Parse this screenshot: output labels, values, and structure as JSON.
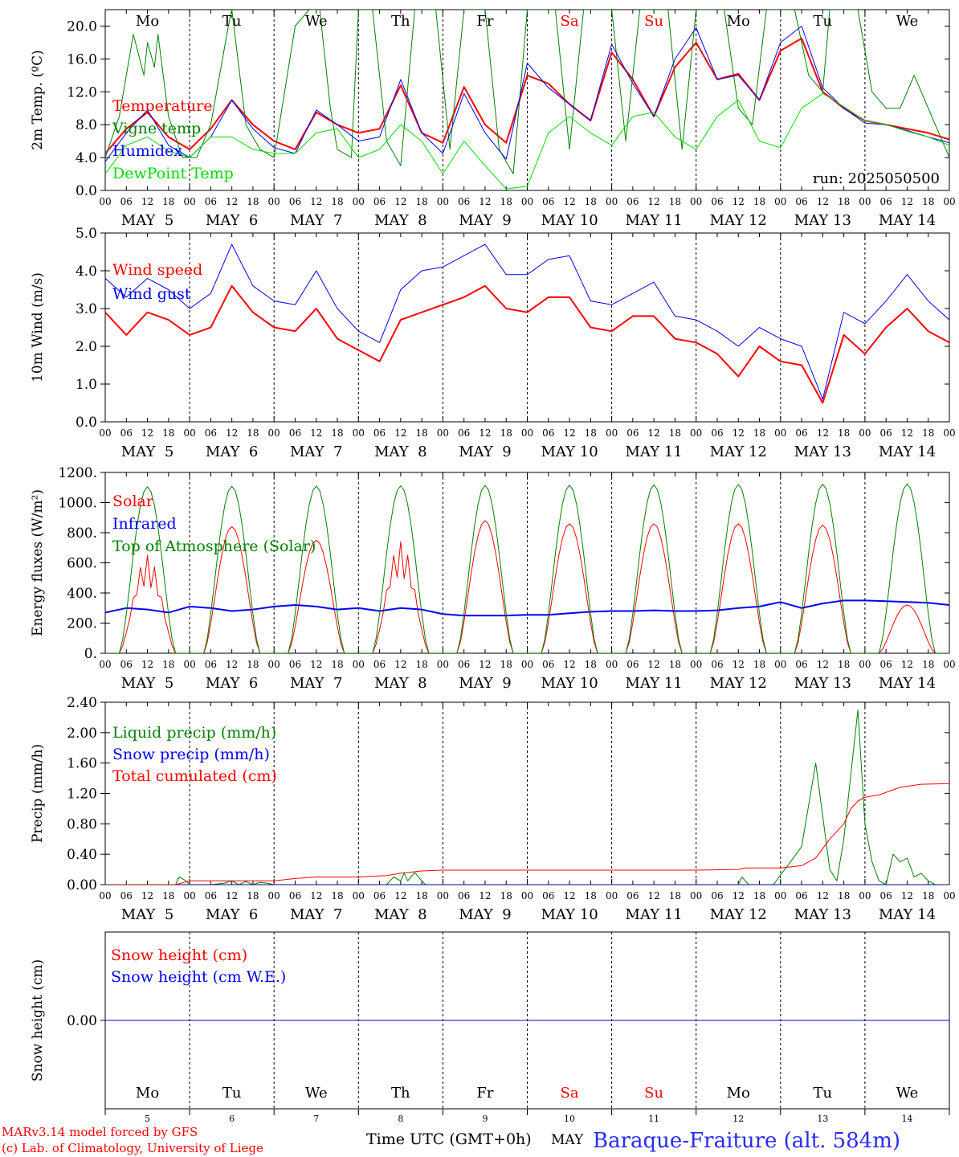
{
  "run_label": "run: 2025050500",
  "footer": {
    "model": "MARv3.14 model forced by GFS",
    "lab": "(c) Lab. of Climatology, University of Liege",
    "time_axis": "Time UTC (GMT+0h)",
    "month": "MAY",
    "station": "Baraque-Fraiture (alt. 584m)"
  },
  "days": [
    "Mo",
    "Tu",
    "We",
    "Th",
    "Fr",
    "Sa",
    "Su",
    "Mo",
    "Tu",
    "We"
  ],
  "weekend_days": [
    5,
    6
  ],
  "day_colors": {
    "weekday": "#000000",
    "weekend": "#ff0000"
  },
  "date_labels": [
    "MAY  5",
    "MAY  6",
    "MAY  7",
    "MAY  8",
    "MAY  9",
    "MAY 10",
    "MAY 11",
    "MAY 12",
    "MAY 13",
    "MAY 14"
  ],
  "day_numbers": [
    "5",
    "6",
    "7",
    "8",
    "9",
    "10",
    "11",
    "12",
    "13",
    "14"
  ],
  "hour_ticks": [
    "00",
    "06",
    "12",
    "18"
  ],
  "chart_data": [
    {
      "id": "temp",
      "type": "line",
      "ylabel": "2m Temp. (ºC)",
      "ylim": [
        0,
        22
      ],
      "ytick_values": [
        0,
        4,
        8,
        12,
        16,
        20
      ],
      "ytick_labels": [
        "0.0",
        "4.0",
        "8.0",
        "12.0",
        "16.0",
        "20.0"
      ],
      "legend_placement": "top-left",
      "x_unit": "hours since MAY 5 00 UTC",
      "series": [
        {
          "name": "Temperature",
          "color": "#ff0000",
          "width": 2,
          "x": [
            0,
            6,
            12,
            18,
            24,
            30,
            36,
            42,
            48,
            54,
            60,
            66,
            72,
            78,
            84,
            90,
            96,
            102,
            108,
            114,
            120,
            126,
            132,
            138,
            144,
            150,
            156,
            162,
            168,
            174,
            180,
            186,
            192,
            198,
            204,
            210,
            216,
            222,
            228,
            234,
            240
          ],
          "y": [
            4.5,
            7.5,
            9.5,
            6.5,
            5,
            7.5,
            11,
            8,
            6,
            5,
            9.5,
            8,
            7,
            7.5,
            12.8,
            7,
            5.8,
            12.6,
            8,
            5.8,
            14,
            13,
            10.5,
            8.5,
            16.8,
            13.5,
            9,
            15,
            18,
            13.5,
            14.2,
            11,
            17,
            18.5,
            12,
            10,
            8.5,
            8,
            7.5,
            7,
            6.2
          ]
        },
        {
          "name": "Vigne temp",
          "color": "#008000",
          "width": 1,
          "x": [
            0,
            4,
            8,
            11,
            12,
            14,
            15,
            18,
            22,
            26,
            30,
            35,
            36,
            40,
            44,
            48,
            54,
            58,
            61,
            64,
            66,
            70,
            72,
            76,
            80,
            84,
            88,
            90,
            94,
            98,
            102,
            106,
            108,
            112,
            116,
            120,
            124,
            128,
            132,
            136,
            140,
            144,
            148,
            152,
            156,
            160,
            164,
            168,
            172,
            176,
            180,
            184,
            188,
            192,
            196,
            200,
            204,
            206,
            210,
            214,
            218,
            222,
            226,
            230,
            236,
            240
          ],
          "y": [
            4,
            9,
            19,
            14,
            18,
            15,
            19,
            9,
            4,
            4,
            8,
            20,
            22,
            8,
            5,
            4,
            20,
            22,
            22,
            10,
            5,
            4,
            22,
            22,
            6,
            3,
            22,
            22,
            22,
            5,
            22,
            22,
            22,
            5,
            2,
            22,
            22,
            22,
            5,
            22,
            22,
            22,
            6,
            22,
            22,
            22,
            5,
            22,
            22,
            22,
            10,
            8,
            22,
            22,
            22,
            14,
            12,
            22,
            22,
            22,
            12,
            10,
            10,
            14,
            8,
            4
          ]
        },
        {
          "name": "Humidex",
          "color": "#0000ff",
          "width": 1,
          "x": [
            0,
            6,
            12,
            18,
            24,
            30,
            36,
            42,
            48,
            54,
            60,
            66,
            72,
            78,
            84,
            90,
            96,
            102,
            108,
            114,
            120,
            126,
            132,
            138,
            144,
            150,
            156,
            162,
            168,
            174,
            180,
            186,
            192,
            198,
            204,
            210,
            216,
            222,
            228,
            234,
            240
          ],
          "y": [
            3.5,
            7,
            9.8,
            5.5,
            4,
            6.5,
            11,
            7.5,
            5.2,
            4.5,
            9.8,
            8,
            6,
            6.5,
            13.5,
            7,
            4.5,
            11.8,
            7,
            3.8,
            15.5,
            12.5,
            10.5,
            8.5,
            17.8,
            13,
            9,
            16,
            19.8,
            13.5,
            14,
            11,
            18,
            20,
            12.5,
            10,
            8.2,
            8,
            7.3,
            6.5,
            5.8
          ]
        },
        {
          "name": "DewPoint Temp",
          "color": "#00dd00",
          "width": 1,
          "x": [
            0,
            6,
            12,
            18,
            24,
            30,
            36,
            42,
            48,
            54,
            60,
            66,
            72,
            78,
            84,
            90,
            96,
            102,
            108,
            114,
            120,
            126,
            132,
            138,
            144,
            150,
            156,
            162,
            168,
            174,
            180,
            186,
            192,
            198,
            204,
            210,
            216,
            222,
            228,
            234,
            240
          ],
          "y": [
            2,
            5.5,
            6.5,
            4.8,
            4,
            6.5,
            6.5,
            5,
            4.5,
            4.5,
            7,
            7.5,
            4,
            5,
            8,
            6,
            2,
            6,
            3,
            0.2,
            0.5,
            7,
            9,
            7,
            5.5,
            9,
            9.5,
            6.5,
            5,
            9,
            11,
            6,
            5.2,
            10,
            11.8,
            10.2,
            8.5,
            8,
            7.2,
            6.5,
            5.5
          ]
        }
      ]
    },
    {
      "id": "wind",
      "type": "line",
      "ylabel": "10m Wind (m/s)",
      "ylim": [
        0,
        5
      ],
      "ytick_values": [
        0,
        1,
        2,
        3,
        4,
        5
      ],
      "ytick_labels": [
        "0.0",
        "1.0",
        "2.0",
        "3.0",
        "4.0",
        "5.0"
      ],
      "legend_placement": "top-left",
      "series": [
        {
          "name": "Wind speed",
          "color": "#ff0000",
          "width": 2,
          "x": [
            0,
            6,
            12,
            18,
            24,
            30,
            36,
            42,
            48,
            54,
            60,
            66,
            72,
            78,
            84,
            90,
            96,
            102,
            108,
            114,
            120,
            126,
            132,
            138,
            144,
            150,
            156,
            162,
            168,
            174,
            180,
            186,
            192,
            198,
            204,
            210,
            216,
            222,
            228,
            234,
            240
          ],
          "y": [
            2.9,
            2.3,
            2.9,
            2.7,
            2.3,
            2.5,
            3.6,
            2.9,
            2.5,
            2.4,
            3,
            2.2,
            1.9,
            1.6,
            2.7,
            2.9,
            3.1,
            3.3,
            3.6,
            3,
            2.9,
            3.3,
            3.3,
            2.5,
            2.4,
            2.8,
            2.8,
            2.2,
            2.1,
            1.8,
            1.2,
            2,
            1.6,
            1.5,
            0.5,
            2.3,
            1.8,
            2.5,
            3,
            2.4,
            2.1
          ]
        },
        {
          "name": "Wind gust",
          "color": "#0000ff",
          "width": 1,
          "x": [
            0,
            6,
            12,
            18,
            24,
            30,
            36,
            42,
            48,
            54,
            60,
            66,
            72,
            78,
            84,
            90,
            96,
            102,
            108,
            114,
            120,
            126,
            132,
            138,
            144,
            150,
            156,
            162,
            168,
            174,
            180,
            186,
            192,
            198,
            204,
            210,
            216,
            222,
            228,
            234,
            240
          ],
          "y": [
            3.8,
            3.3,
            3.8,
            3.5,
            3,
            3.4,
            4.7,
            3.6,
            3.2,
            3.1,
            4,
            3,
            2.4,
            2.1,
            3.5,
            4,
            4.1,
            4.4,
            4.7,
            3.9,
            3.9,
            4.3,
            4.4,
            3.2,
            3.1,
            3.4,
            3.7,
            2.8,
            2.7,
            2.4,
            2,
            2.5,
            2.2,
            2,
            0.6,
            2.9,
            2.6,
            3.2,
            3.9,
            3.2,
            2.7
          ]
        }
      ]
    },
    {
      "id": "energy",
      "type": "line",
      "ylabel": "Energy fluxes (W/m²)",
      "ylim": [
        0,
        1200
      ],
      "ytick_values": [
        0,
        200,
        400,
        600,
        800,
        1000,
        1200
      ],
      "ytick_labels": [
        "0.",
        "200.",
        "400.",
        "600.",
        "800.",
        "1000.",
        "1200."
      ],
      "legend_placement": "top-left",
      "series": [
        {
          "name": "Solar",
          "color": "#ff0000",
          "width": 1,
          "daily_peaks": [
            650,
            840,
            750,
            740,
            880,
            860,
            860,
            860,
            850,
            320
          ],
          "sunrise_hour": 4,
          "sunset_hour": 20
        },
        {
          "name": "Infrared",
          "color": "#0000ff",
          "width": 2,
          "x": [
            0,
            6,
            12,
            18,
            24,
            30,
            36,
            42,
            48,
            54,
            60,
            66,
            72,
            78,
            84,
            90,
            96,
            102,
            108,
            114,
            120,
            126,
            132,
            138,
            144,
            150,
            156,
            162,
            168,
            174,
            180,
            186,
            192,
            198,
            204,
            210,
            216,
            222,
            228,
            234,
            240
          ],
          "y": [
            270,
            300,
            290,
            270,
            310,
            300,
            280,
            290,
            310,
            320,
            310,
            290,
            300,
            280,
            300,
            290,
            260,
            250,
            250,
            250,
            255,
            255,
            265,
            275,
            280,
            280,
            285,
            280,
            280,
            285,
            300,
            310,
            340,
            300,
            330,
            350,
            350,
            345,
            340,
            335,
            320
          ]
        },
        {
          "name": "Top of Atmosphere (Solar)",
          "color": "#008000",
          "width": 1,
          "daily_peaks": [
            1105,
            1108,
            1110,
            1112,
            1114,
            1116,
            1118,
            1120,
            1122,
            1124
          ],
          "sunrise_hour": 4,
          "sunset_hour": 20
        }
      ]
    },
    {
      "id": "precip",
      "type": "line",
      "ylabel": "Precip (mm/h)",
      "ylim": [
        0,
        2.4
      ],
      "ytick_values": [
        0,
        0.4,
        0.8,
        1.2,
        1.6,
        2.0,
        2.4
      ],
      "ytick_labels": [
        "0.00",
        "0.40",
        "0.80",
        "1.20",
        "1.60",
        "2.00",
        "2.40"
      ],
      "legend_placement": "top-left",
      "series": [
        {
          "name": "Liquid precip (mm/h)",
          "color": "#008000",
          "width": 1,
          "x": [
            0,
            20,
            21,
            23,
            24,
            30,
            34,
            36,
            38,
            40,
            42,
            44,
            46,
            48,
            80,
            82,
            84,
            85,
            86,
            88,
            90,
            91,
            170,
            180,
            181,
            182,
            183,
            190,
            198,
            202,
            206,
            208,
            210,
            214,
            216,
            218,
            220,
            222,
            224,
            226,
            228,
            230,
            232,
            234,
            236,
            240
          ],
          "y": [
            0,
            0,
            0.1,
            0.05,
            0,
            0,
            0.02,
            0.05,
            0,
            0.04,
            0,
            0.03,
            0.02,
            0,
            0,
            0.1,
            0.05,
            0.15,
            0.05,
            0.16,
            0.05,
            0,
            0,
            0,
            0.1,
            0.05,
            0,
            0,
            0.5,
            1.6,
            0.2,
            0.05,
            0.6,
            2.3,
            0.8,
            0.3,
            0.05,
            0,
            0.4,
            0.3,
            0.35,
            0.1,
            0.15,
            0.05,
            0,
            0
          ]
        },
        {
          "name": "Snow precip (mm/h)",
          "color": "#0000ff",
          "width": 1,
          "x": [
            0,
            240
          ],
          "y": [
            0,
            0
          ]
        },
        {
          "name": "Total cumulated (cm)",
          "color": "#ff0000",
          "width": 1,
          "x": [
            0,
            20,
            24,
            48,
            54,
            60,
            72,
            80,
            84,
            90,
            96,
            168,
            180,
            182,
            192,
            198,
            202,
            206,
            210,
            212,
            214,
            216,
            220,
            226,
            232,
            240
          ],
          "y": [
            0,
            0,
            0.05,
            0.05,
            0.08,
            0.1,
            0.1,
            0.12,
            0.15,
            0.18,
            0.19,
            0.19,
            0.2,
            0.22,
            0.22,
            0.25,
            0.35,
            0.6,
            0.8,
            1.0,
            1.1,
            1.15,
            1.18,
            1.28,
            1.32,
            1.33
          ]
        }
      ]
    },
    {
      "id": "snow",
      "type": "line",
      "ylabel": "Snow height (cm)",
      "ylim": [
        -1,
        1
      ],
      "ytick_values": [
        0
      ],
      "ytick_labels": [
        "0.00"
      ],
      "legend_placement": "top-left",
      "series": [
        {
          "name": "Snow height (cm)",
          "color": "#ff0000",
          "width": 1,
          "x": [
            0,
            240
          ],
          "y": [
            0,
            0
          ]
        },
        {
          "name": "Snow height (cm W.E.)",
          "color": "#0000ff",
          "width": 1,
          "x": [
            0,
            240
          ],
          "y": [
            0,
            0
          ]
        }
      ]
    }
  ]
}
